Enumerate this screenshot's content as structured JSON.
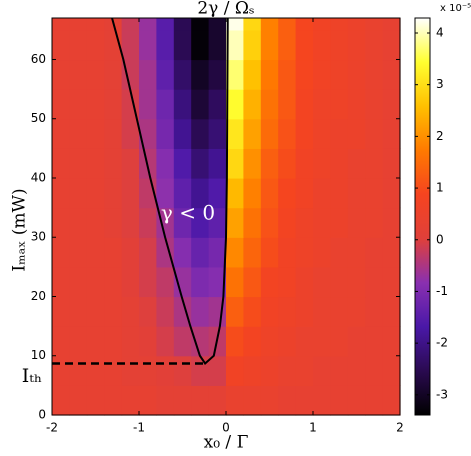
{
  "chart_data": {
    "type": "heatmap",
    "title": "2γ / Ωₛ",
    "x_label": "x₀ / Γ",
    "y_label": "Iₘₐₓ  (mW)",
    "annotations": {
      "region": "γ < 0",
      "threshold": "Iₜₕ"
    },
    "colorbar_exponent": "x 10⁻⁵",
    "xlim": [
      -2,
      2
    ],
    "ylim": [
      0,
      67
    ],
    "xticks": [
      -2,
      -1,
      0,
      1,
      2
    ],
    "yticks": [
      0,
      10,
      20,
      30,
      40,
      50,
      60
    ],
    "clim": [
      -3.39,
      4.29
    ],
    "cticks": [
      -3,
      -2,
      -1,
      0,
      1,
      2,
      3,
      4
    ],
    "colorscale": [
      "#000000",
      "#2a0a50",
      "#4a18a8",
      "#8a30b0",
      "#e0403a",
      "#f54420",
      "#ff7a00",
      "#ffc000",
      "#ffff30",
      "#ffffff"
    ],
    "xbins": [
      -2,
      -1.8,
      -1.6,
      -1.4,
      -1.2,
      -1,
      -0.8,
      -0.6,
      -0.4,
      -0.2,
      0,
      0.2,
      0.4,
      0.6,
      0.8,
      1,
      1.2,
      1.4,
      1.6,
      1.8,
      2
    ],
    "ybins": [
      0,
      5,
      10,
      15,
      20,
      25,
      30,
      35,
      40,
      45,
      50,
      55,
      60,
      65,
      67
    ],
    "z": [
      [
        0.3,
        0.3,
        0.3,
        0.3,
        0.3,
        0.3,
        0.2,
        0.2,
        0.2,
        0.2,
        0.4,
        0.4,
        0.4,
        0.3,
        0.3,
        0.3,
        0.3,
        0.3,
        0.3,
        0.3
      ],
      [
        0.3,
        0.3,
        0.3,
        0.3,
        0.2,
        0.2,
        0.1,
        0.0,
        -0.1,
        -0.1,
        0.7,
        0.6,
        0.5,
        0.4,
        0.4,
        0.3,
        0.3,
        0.3,
        0.3,
        0.3
      ],
      [
        0.3,
        0.3,
        0.3,
        0.3,
        0.2,
        0.1,
        -0.1,
        -0.3,
        -0.4,
        -0.3,
        1.0,
        0.8,
        0.6,
        0.5,
        0.4,
        0.4,
        0.4,
        0.3,
        0.3,
        0.3
      ],
      [
        0.3,
        0.3,
        0.3,
        0.3,
        0.2,
        0.0,
        -0.2,
        -0.5,
        -0.7,
        -0.6,
        1.3,
        1.0,
        0.7,
        0.6,
        0.5,
        0.4,
        0.4,
        0.4,
        0.3,
        0.3
      ],
      [
        0.3,
        0.3,
        0.3,
        0.3,
        0.1,
        -0.1,
        -0.3,
        -0.7,
        -1.0,
        -0.9,
        1.6,
        1.2,
        0.8,
        0.7,
        0.5,
        0.4,
        0.4,
        0.4,
        0.3,
        0.3
      ],
      [
        0.3,
        0.3,
        0.3,
        0.3,
        0.1,
        -0.1,
        -0.5,
        -0.9,
        -1.3,
        -1.1,
        1.9,
        1.4,
        1.0,
        0.7,
        0.6,
        0.5,
        0.4,
        0.4,
        0.3,
        0.3
      ],
      [
        0.3,
        0.3,
        0.3,
        0.2,
        0.0,
        -0.2,
        -0.6,
        -1.2,
        -1.6,
        -1.4,
        2.2,
        1.6,
        1.1,
        0.8,
        0.6,
        0.5,
        0.5,
        0.4,
        0.4,
        0.3
      ],
      [
        0.3,
        0.3,
        0.3,
        0.2,
        0.0,
        -0.3,
        -0.8,
        -1.4,
        -1.9,
        -1.6,
        2.5,
        1.8,
        1.2,
        0.9,
        0.7,
        0.5,
        0.5,
        0.4,
        0.4,
        0.3
      ],
      [
        0.3,
        0.3,
        0.3,
        0.2,
        0.0,
        -0.4,
        -0.9,
        -1.6,
        -2.2,
        -1.9,
        2.9,
        2.0,
        1.3,
        1.0,
        0.7,
        0.6,
        0.5,
        0.4,
        0.4,
        0.3
      ],
      [
        0.3,
        0.3,
        0.3,
        0.2,
        -0.1,
        -0.5,
        -1.1,
        -1.9,
        -2.5,
        -2.2,
        3.1,
        2.2,
        1.5,
        1.1,
        0.8,
        0.6,
        0.5,
        0.5,
        0.4,
        0.3
      ],
      [
        0.3,
        0.3,
        0.3,
        0.2,
        -0.1,
        -0.6,
        -1.2,
        -2.1,
        -2.8,
        -2.4,
        3.4,
        2.4,
        1.6,
        1.2,
        0.8,
        0.6,
        0.6,
        0.5,
        0.4,
        0.3
      ],
      [
        0.3,
        0.3,
        0.3,
        0.2,
        -0.2,
        -0.6,
        -1.4,
        -2.3,
        -3.0,
        -2.7,
        3.7,
        2.6,
        1.7,
        1.2,
        0.9,
        0.7,
        0.6,
        0.5,
        0.4,
        0.3
      ],
      [
        0.3,
        0.3,
        0.3,
        0.2,
        -0.2,
        -0.7,
        -1.5,
        -2.5,
        -3.3,
        -2.9,
        4.0,
        2.8,
        1.8,
        1.3,
        0.9,
        0.7,
        0.6,
        0.5,
        0.4,
        0.3
      ],
      [
        0.3,
        0.3,
        0.3,
        0.2,
        -0.2,
        -0.7,
        -1.5,
        -2.5,
        -3.3,
        -2.9,
        4.2,
        2.9,
        1.8,
        1.3,
        0.9,
        0.7,
        0.6,
        0.5,
        0.4,
        0.3
      ]
    ],
    "contour": {
      "color": "#000000",
      "x": [
        -1.31,
        -1.18,
        -0.87,
        -0.7,
        -0.51,
        -0.41,
        -0.3,
        -0.24,
        -0.14,
        -0.07,
        -0.03,
        0.0,
        0.01,
        0.02
      ],
      "y": [
        67,
        60,
        40,
        30,
        20,
        15,
        10,
        8.7,
        10,
        15,
        20,
        30,
        40,
        67
      ]
    },
    "threshold_line": {
      "color": "#000000",
      "x": [
        -2,
        -0.24
      ],
      "y": [
        8.7,
        8.7
      ]
    }
  }
}
